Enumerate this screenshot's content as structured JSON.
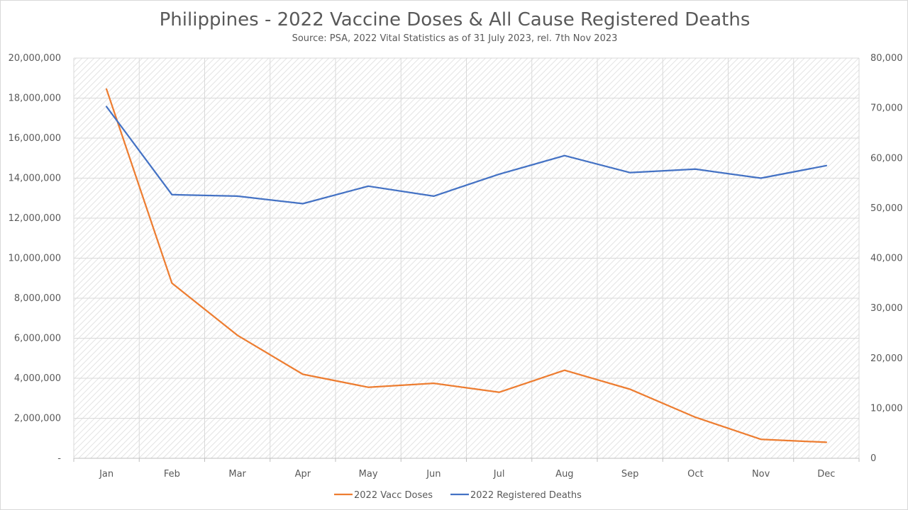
{
  "chart_data": {
    "type": "line",
    "title": "Philippines - 2022 Vaccine Doses & All Cause Registered Deaths",
    "subtitle": "Source: PSA, 2022 Vital Statistics as of 31 July 2023, rel. 7th Nov 2023",
    "categories": [
      "Jan",
      "Feb",
      "Mar",
      "Apr",
      "May",
      "Jun",
      "Jul",
      "Aug",
      "Sep",
      "Oct",
      "Nov",
      "Dec"
    ],
    "series": [
      {
        "name": "2022 Vacc Doses",
        "axis": "left",
        "color": "#ED7D31",
        "values": [
          18450000,
          8750000,
          6150000,
          4200000,
          3550000,
          3750000,
          3300000,
          4400000,
          3450000,
          2050000,
          950000,
          800000
        ]
      },
      {
        "name": "2022 Registered Deaths",
        "axis": "right",
        "color": "#4472C4",
        "values": [
          70300,
          52700,
          52400,
          50900,
          54400,
          52400,
          56800,
          60500,
          57100,
          57800,
          56000,
          58500
        ]
      }
    ],
    "y_left": {
      "min": 0,
      "max": 20000000,
      "step": 2000000,
      "tick_labels": [
        "-",
        "2,000,000",
        "4,000,000",
        "6,000,000",
        "8,000,000",
        "10,000,000",
        "12,000,000",
        "14,000,000",
        "16,000,000",
        "18,000,000",
        "20,000,000"
      ]
    },
    "y_right": {
      "min": 0,
      "max": 80000,
      "step": 10000,
      "tick_labels": [
        "0",
        "10,000",
        "20,000",
        "30,000",
        "40,000",
        "50,000",
        "60,000",
        "70,000",
        "80,000"
      ]
    },
    "grid": true,
    "plot_background": "hatched",
    "legend_position": "bottom"
  }
}
